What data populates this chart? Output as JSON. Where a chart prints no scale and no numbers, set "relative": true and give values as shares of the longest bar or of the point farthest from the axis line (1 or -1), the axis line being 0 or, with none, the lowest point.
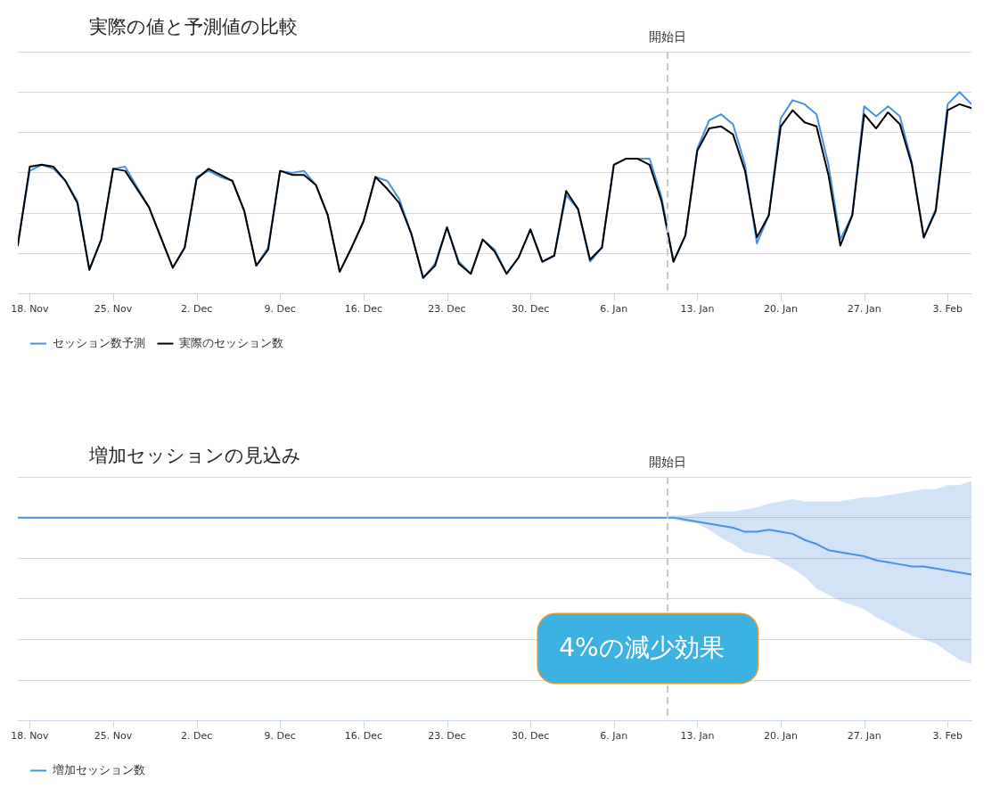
{
  "chart_data": [
    {
      "type": "line",
      "title": "実際の値と予測値の比較",
      "relative": true,
      "categories": [
        null,
        "18. Nov",
        null,
        null,
        null,
        null,
        null,
        null,
        "25. Nov",
        null,
        null,
        null,
        null,
        null,
        null,
        "2. Dec",
        null,
        null,
        null,
        null,
        null,
        null,
        "9. Dec",
        null,
        null,
        null,
        null,
        null,
        null,
        "16. Dec",
        null,
        null,
        null,
        null,
        null,
        null,
        "23. Dec",
        null,
        null,
        null,
        null,
        null,
        null,
        "30. Dec",
        null,
        null,
        null,
        null,
        null,
        null,
        "6. Jan",
        null,
        null,
        null,
        null,
        null,
        null,
        "13. Jan",
        null,
        null,
        null,
        null,
        null,
        null,
        "20. Jan",
        null,
        null,
        null,
        null,
        null,
        null,
        "27. Jan",
        null,
        null,
        null,
        null,
        null,
        null,
        "3. Feb",
        null,
        null
      ],
      "series": [
        {
          "name": "セッション数予測",
          "color": "#4a90e2",
          "values": [
            0.25,
            0.61,
            0.64,
            0.62,
            0.56,
            0.46,
            0.12,
            0.27,
            0.62,
            0.63,
            0.53,
            0.43,
            0.28,
            0.13,
            0.23,
            0.58,
            0.61,
            0.58,
            0.56,
            0.41,
            0.14,
            0.23,
            0.61,
            0.6,
            0.61,
            0.54,
            0.39,
            0.11,
            0.23,
            0.36,
            0.58,
            0.56,
            0.47,
            0.3,
            0.08,
            0.15,
            0.33,
            0.16,
            0.1,
            0.27,
            0.22,
            0.1,
            0.18,
            0.32,
            0.16,
            0.19,
            0.49,
            0.42,
            0.16,
            0.23,
            0.64,
            0.67,
            0.67,
            0.67,
            0.48,
            0.16,
            0.29,
            0.72,
            0.86,
            0.89,
            0.84,
            0.64,
            0.25,
            0.39,
            0.87,
            0.96,
            0.94,
            0.89,
            0.64,
            0.27,
            0.39,
            0.93,
            0.88,
            0.93,
            0.88,
            0.65,
            0.28,
            0.42,
            0.94,
            1,
            0.94
          ]
        },
        {
          "name": "実際のセッション数",
          "color": "#000000",
          "values": [
            0.24,
            0.63,
            0.64,
            0.63,
            0.56,
            0.45,
            0.12,
            0.27,
            0.62,
            0.61,
            0.52,
            0.43,
            0.28,
            0.13,
            0.23,
            0.57,
            0.62,
            0.59,
            0.56,
            0.41,
            0.14,
            0.22,
            0.61,
            0.59,
            0.59,
            0.54,
            0.39,
            0.11,
            0.23,
            0.36,
            0.58,
            0.52,
            0.45,
            0.3,
            0.08,
            0.14,
            0.33,
            0.15,
            0.1,
            0.27,
            0.21,
            0.1,
            0.18,
            0.32,
            0.16,
            0.19,
            0.51,
            0.42,
            0.17,
            0.23,
            0.64,
            0.67,
            0.67,
            0.64,
            0.46,
            0.16,
            0.29,
            0.71,
            0.82,
            0.83,
            0.79,
            0.61,
            0.28,
            0.39,
            0.83,
            0.91,
            0.85,
            0.83,
            0.59,
            0.24,
            0.39,
            0.89,
            0.82,
            0.9,
            0.84,
            0.64,
            0.28,
            0.41,
            0.91,
            0.94,
            0.92
          ]
        }
      ],
      "annotations": [
        "開始日"
      ],
      "grid": "y",
      "legend": "bottom left"
    },
    {
      "type": "line",
      "title": "増加セッションの見込み",
      "relative": true,
      "categories": [
        null,
        "18. Nov",
        null,
        null,
        null,
        null,
        null,
        null,
        "25. Nov",
        null,
        null,
        null,
        null,
        null,
        null,
        "2. Dec",
        null,
        null,
        null,
        null,
        null,
        null,
        "9. Dec",
        null,
        null,
        null,
        null,
        null,
        null,
        "16. Dec",
        null,
        null,
        null,
        null,
        null,
        null,
        "23. Dec",
        null,
        null,
        null,
        null,
        null,
        null,
        "30. Dec",
        null,
        null,
        null,
        null,
        null,
        null,
        "6. Jan",
        null,
        null,
        null,
        null,
        null,
        null,
        "13. Jan",
        null,
        null,
        null,
        null,
        null,
        null,
        "20. Jan",
        null,
        null,
        null,
        null,
        null,
        null,
        "27. Jan",
        null,
        null,
        null,
        null,
        null,
        null,
        "3. Feb",
        null,
        null
      ],
      "series": [
        {
          "name": "増加セッション数",
          "color": "#4a90e2",
          "values": [
            1,
            1,
            1,
            1,
            1,
            1,
            1,
            1,
            1,
            1,
            1,
            1,
            1,
            1,
            1,
            1,
            1,
            1,
            1,
            1,
            1,
            1,
            1,
            1,
            1,
            1,
            1,
            1,
            1,
            1,
            1,
            1,
            1,
            1,
            1,
            1,
            1,
            1,
            1,
            1,
            1,
            1,
            1,
            1,
            1,
            1,
            1,
            1,
            1,
            1,
            1,
            1,
            1,
            1,
            1,
            1,
            0.99,
            0.98,
            0.97,
            0.96,
            0.95,
            0.93,
            0.93,
            0.94,
            0.93,
            0.92,
            0.89,
            0.87,
            0.84,
            0.83,
            0.82,
            0.81,
            0.79,
            0.78,
            0.77,
            0.76,
            0.76,
            0.75,
            0.74,
            0.73,
            0.72
          ],
          "lower": [
            null,
            null,
            null,
            null,
            null,
            null,
            null,
            null,
            null,
            null,
            null,
            null,
            null,
            null,
            null,
            null,
            null,
            null,
            null,
            null,
            null,
            null,
            null,
            null,
            null,
            null,
            null,
            null,
            null,
            null,
            null,
            null,
            null,
            null,
            null,
            null,
            null,
            null,
            null,
            null,
            null,
            null,
            null,
            null,
            null,
            null,
            null,
            null,
            null,
            null,
            null,
            null,
            null,
            null,
            1,
            0.99,
            0.98,
            0.97,
            0.94,
            0.9,
            0.87,
            0.83,
            0.82,
            0.81,
            0.78,
            0.75,
            0.71,
            0.65,
            0.62,
            0.59,
            0.57,
            0.55,
            0.51,
            0.48,
            0.45,
            0.42,
            0.4,
            0.38,
            0.34,
            0.3,
            0.28
          ],
          "upper": [
            null,
            null,
            null,
            null,
            null,
            null,
            null,
            null,
            null,
            null,
            null,
            null,
            null,
            null,
            null,
            null,
            null,
            null,
            null,
            null,
            null,
            null,
            null,
            null,
            null,
            null,
            null,
            null,
            null,
            null,
            null,
            null,
            null,
            null,
            null,
            null,
            null,
            null,
            null,
            null,
            null,
            null,
            null,
            null,
            null,
            null,
            null,
            null,
            null,
            null,
            null,
            null,
            null,
            null,
            1,
            1.01,
            1.01,
            1.02,
            1.03,
            1.03,
            1.03,
            1.04,
            1.05,
            1.07,
            1.08,
            1.09,
            1.08,
            1.08,
            1.08,
            1.08,
            1.09,
            1.1,
            1.1,
            1.11,
            1.12,
            1.13,
            1.14,
            1.14,
            1.16,
            1.16,
            1.18
          ]
        }
      ],
      "annotations": [
        "開始日",
        "4%の減少効果"
      ],
      "grid": "y",
      "legend": "bottom left"
    }
  ]
}
